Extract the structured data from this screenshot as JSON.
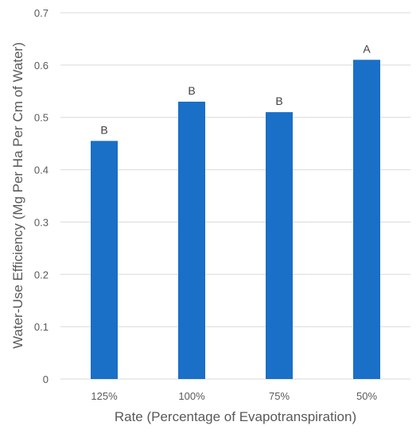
{
  "chart_data": {
    "type": "bar",
    "title": "",
    "xlabel": "Rate (Percentage of Evapotranspiration)",
    "ylabel": "Water-Use Efficiency (Mg Per Ha Per Cm of Water)",
    "categories": [
      "125%",
      "100%",
      "75%",
      "50%"
    ],
    "values": [
      0.455,
      0.53,
      0.51,
      0.61
    ],
    "data_labels": [
      "B",
      "B",
      "B",
      "A"
    ],
    "ylim": [
      0,
      0.7
    ],
    "yticks": [
      "0",
      "0.1",
      "0.2",
      "0.3",
      "0.4",
      "0.5",
      "0.6",
      "0.7"
    ],
    "grid": true,
    "legend": "none",
    "colors": {
      "bar": "#1a6fc7",
      "grid": "#d9d9d9",
      "axis": "#d9d9d9",
      "text": "#595959"
    }
  }
}
